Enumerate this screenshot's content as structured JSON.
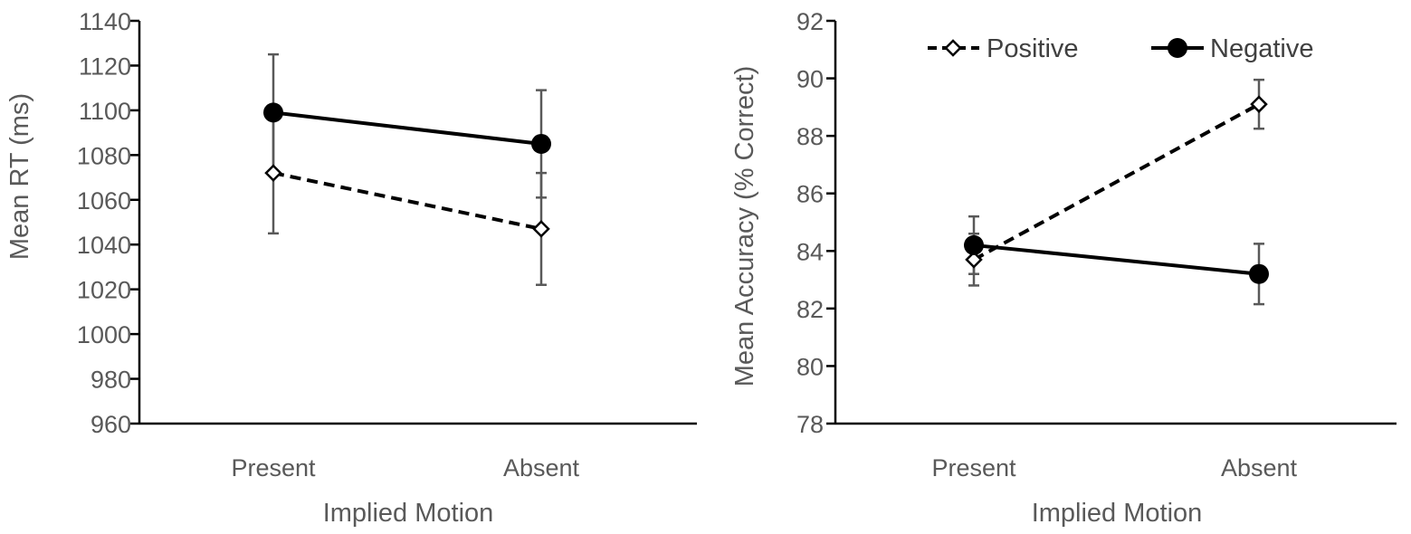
{
  "chart_data": [
    {
      "type": "line",
      "title": "",
      "xlabel": "Implied Motion",
      "ylabel": "Mean RT  (ms)",
      "categories": [
        "Present",
        "Absent"
      ],
      "ylim": [
        960,
        1140
      ],
      "yticks": [
        "960",
        "980",
        "1000",
        "1020",
        "1040",
        "1060",
        "1080",
        "1100",
        "1120",
        "1140"
      ],
      "grid": false,
      "legend": "none",
      "series": [
        {
          "name": "Positive",
          "values": [
            1072,
            1047
          ],
          "error": [
            27,
            25
          ],
          "line_style": "dashed",
          "marker": "open-diamond",
          "color": "#000000"
        },
        {
          "name": "Negative",
          "values": [
            1099,
            1085
          ],
          "error": [
            26,
            24
          ],
          "line_style": "solid",
          "marker": "filled-circle",
          "color": "#000000"
        }
      ]
    },
    {
      "type": "line",
      "title": "",
      "xlabel": "Implied Motion",
      "ylabel": "Mean Accuracy (% Correct)",
      "categories": [
        "Present",
        "Absent"
      ],
      "ylim": [
        78,
        92
      ],
      "yticks": [
        "78",
        "80",
        "82",
        "84",
        "86",
        "88",
        "90",
        "92"
      ],
      "grid": false,
      "legend": "top",
      "series": [
        {
          "name": "Positive",
          "values": [
            83.7,
            89.1
          ],
          "error": [
            0.9,
            0.85
          ],
          "line_style": "dashed",
          "marker": "open-diamond",
          "color": "#000000"
        },
        {
          "name": "Negative",
          "values": [
            84.2,
            83.2
          ],
          "error": [
            1.0,
            1.05
          ],
          "line_style": "solid",
          "marker": "filled-circle",
          "color": "#000000"
        }
      ]
    }
  ],
  "colors": {
    "axis": "#000000",
    "error_bar": "#595959",
    "tick_text": "#595959"
  }
}
